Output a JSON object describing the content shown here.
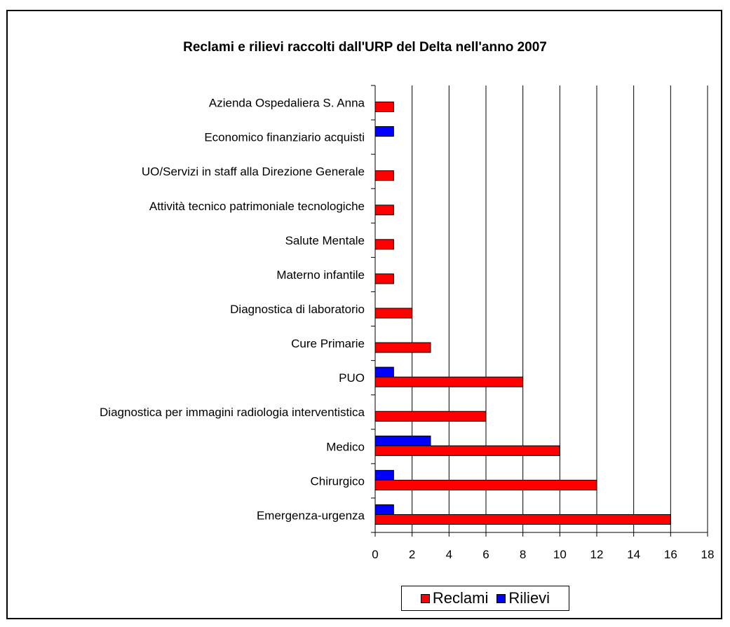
{
  "chart_data": {
    "type": "bar",
    "orientation": "horizontal",
    "title": "Reclami e rilievi raccolti dall'URP del Delta nell'anno 2007",
    "xlabel": "",
    "ylabel": "",
    "xlim": [
      0,
      18
    ],
    "xticks": [
      "0",
      "2",
      "4",
      "6",
      "8",
      "10",
      "12",
      "14",
      "16",
      "18"
    ],
    "grid": "vertical",
    "legend_position": "bottom",
    "categories": [
      "Azienda Ospedaliera S. Anna",
      "Economico finanziario acquisti",
      "UO/Servizi in staff alla Direzione Generale",
      "Attività tecnico patrimoniale tecnologiche",
      "Salute Mentale",
      "Materno infantile",
      "Diagnostica di laboratorio",
      "Cure Primarie",
      "PUO",
      "Diagnostica per immagini radiologia interventistica",
      "Medico",
      "Chirurgico",
      "Emergenza-urgenza"
    ],
    "series": [
      {
        "name": "Reclami",
        "color": "#ff0000",
        "values": [
          1,
          0,
          1,
          1,
          1,
          1,
          2,
          3,
          8,
          6,
          10,
          12,
          16
        ]
      },
      {
        "name": "Rilievi",
        "color": "#0000ff",
        "values": [
          0,
          1,
          0,
          0,
          0,
          0,
          0,
          0,
          1,
          0,
          3,
          1,
          1
        ]
      }
    ]
  }
}
